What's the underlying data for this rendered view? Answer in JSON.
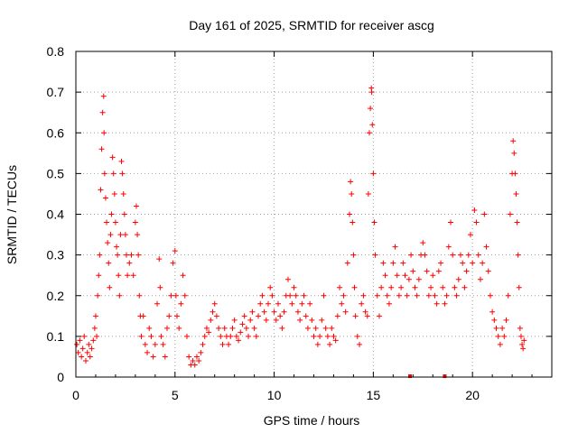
{
  "chart_data": {
    "type": "scatter",
    "title": "Day 161 of 2025, SRMTID for receiver ascg",
    "xlabel": "GPS time / hours",
    "ylabel": "SRMTID / TECUs",
    "xlim": [
      0,
      24
    ],
    "ylim": [
      0,
      0.8
    ],
    "grid": true,
    "marker": "+",
    "xticks": [
      {
        "value": 0,
        "label": "0"
      },
      {
        "value": 5,
        "label": "5"
      },
      {
        "value": 10,
        "label": "10"
      },
      {
        "value": 15,
        "label": "15"
      },
      {
        "value": 20,
        "label": "20"
      }
    ],
    "yticks": [
      {
        "value": 0,
        "label": "0"
      },
      {
        "value": 0.1,
        "label": "0.1"
      },
      {
        "value": 0.2,
        "label": "0.2"
      },
      {
        "value": 0.3,
        "label": "0.3"
      },
      {
        "value": 0.4,
        "label": "0.4"
      },
      {
        "value": 0.5,
        "label": "0.5"
      },
      {
        "value": 0.6,
        "label": "0.6"
      },
      {
        "value": 0.7,
        "label": "0.7"
      },
      {
        "value": 0.8,
        "label": "0.8"
      }
    ],
    "series": [
      {
        "name": "SRMTID",
        "color": "#ff0000",
        "points": [
          [
            0.05,
            0.08
          ],
          [
            0.12,
            0.06
          ],
          [
            0.2,
            0.09
          ],
          [
            0.28,
            0.05
          ],
          [
            0.35,
            0.07
          ],
          [
            0.42,
            0.1
          ],
          [
            0.5,
            0.04
          ],
          [
            0.58,
            0.06
          ],
          [
            0.65,
            0.08
          ],
          [
            0.72,
            0.05
          ],
          [
            0.8,
            0.07
          ],
          [
            0.88,
            0.09
          ],
          [
            0.95,
            0.12
          ],
          [
            1.0,
            0.15
          ],
          [
            1.05,
            0.1
          ],
          [
            1.1,
            0.2
          ],
          [
            1.15,
            0.25
          ],
          [
            1.2,
            0.3
          ],
          [
            1.25,
            0.46
          ],
          [
            1.3,
            0.56
          ],
          [
            1.35,
            0.65
          ],
          [
            1.4,
            0.69
          ],
          [
            1.42,
            0.6
          ],
          [
            1.45,
            0.5
          ],
          [
            1.5,
            0.44
          ],
          [
            1.55,
            0.38
          ],
          [
            1.6,
            0.33
          ],
          [
            1.65,
            0.28
          ],
          [
            1.7,
            0.22
          ],
          [
            1.75,
            0.35
          ],
          [
            1.8,
            0.4
          ],
          [
            1.85,
            0.54
          ],
          [
            1.9,
            0.5
          ],
          [
            1.95,
            0.45
          ],
          [
            2.0,
            0.38
          ],
          [
            2.05,
            0.32
          ],
          [
            2.1,
            0.3
          ],
          [
            2.15,
            0.25
          ],
          [
            2.2,
            0.2
          ],
          [
            2.25,
            0.35
          ],
          [
            2.3,
            0.53
          ],
          [
            2.35,
            0.5
          ],
          [
            2.4,
            0.45
          ],
          [
            2.45,
            0.4
          ],
          [
            2.5,
            0.35
          ],
          [
            2.55,
            0.3
          ],
          [
            2.6,
            0.25
          ],
          [
            2.7,
            0.28
          ],
          [
            2.8,
            0.3
          ],
          [
            2.9,
            0.25
          ],
          [
            3.0,
            0.38
          ],
          [
            3.05,
            0.42
          ],
          [
            3.1,
            0.35
          ],
          [
            3.15,
            0.3
          ],
          [
            3.2,
            0.2
          ],
          [
            3.25,
            0.15
          ],
          [
            3.3,
            0.1
          ],
          [
            3.4,
            0.15
          ],
          [
            3.5,
            0.08
          ],
          [
            3.6,
            0.06
          ],
          [
            3.7,
            0.12
          ],
          [
            3.8,
            0.1
          ],
          [
            3.9,
            0.05
          ],
          [
            4.0,
            0.08
          ],
          [
            4.1,
            0.18
          ],
          [
            4.2,
            0.29
          ],
          [
            4.25,
            0.22
          ],
          [
            4.3,
            0.1
          ],
          [
            4.4,
            0.08
          ],
          [
            4.5,
            0.05
          ],
          [
            4.6,
            0.12
          ],
          [
            4.7,
            0.15
          ],
          [
            4.8,
            0.2
          ],
          [
            4.9,
            0.28
          ],
          [
            5.0,
            0.31
          ],
          [
            5.05,
            0.2
          ],
          [
            5.1,
            0.15
          ],
          [
            5.2,
            0.12
          ],
          [
            5.3,
            0.18
          ],
          [
            5.4,
            0.25
          ],
          [
            5.5,
            0.2
          ],
          [
            5.6,
            0.1
          ],
          [
            5.7,
            0.05
          ],
          [
            5.8,
            0.03
          ],
          [
            5.9,
            0.04
          ],
          [
            6.0,
            0.03
          ],
          [
            6.1,
            0.05
          ],
          [
            6.2,
            0.04
          ],
          [
            6.3,
            0.06
          ],
          [
            6.4,
            0.08
          ],
          [
            6.5,
            0.1
          ],
          [
            6.6,
            0.12
          ],
          [
            6.7,
            0.11
          ],
          [
            6.8,
            0.14
          ],
          [
            6.9,
            0.16
          ],
          [
            7.0,
            0.18
          ],
          [
            7.1,
            0.15
          ],
          [
            7.2,
            0.12
          ],
          [
            7.3,
            0.1
          ],
          [
            7.4,
            0.08
          ],
          [
            7.5,
            0.12
          ],
          [
            7.6,
            0.1
          ],
          [
            7.7,
            0.08
          ],
          [
            7.8,
            0.1
          ],
          [
            7.9,
            0.12
          ],
          [
            8.0,
            0.14
          ],
          [
            8.1,
            0.1
          ],
          [
            8.2,
            0.09
          ],
          [
            8.3,
            0.11
          ],
          [
            8.4,
            0.13
          ],
          [
            8.5,
            0.15
          ],
          [
            8.6,
            0.12
          ],
          [
            8.7,
            0.1
          ],
          [
            8.8,
            0.14
          ],
          [
            8.9,
            0.16
          ],
          [
            9.0,
            0.12
          ],
          [
            9.1,
            0.1
          ],
          [
            9.2,
            0.15
          ],
          [
            9.3,
            0.18
          ],
          [
            9.4,
            0.2
          ],
          [
            9.5,
            0.16
          ],
          [
            9.6,
            0.14
          ],
          [
            9.7,
            0.18
          ],
          [
            9.8,
            0.22
          ],
          [
            9.9,
            0.2
          ],
          [
            10.0,
            0.16
          ],
          [
            10.1,
            0.14
          ],
          [
            10.2,
            0.18
          ],
          [
            10.3,
            0.15
          ],
          [
            10.4,
            0.12
          ],
          [
            10.5,
            0.16
          ],
          [
            10.6,
            0.2
          ],
          [
            10.7,
            0.24
          ],
          [
            10.8,
            0.2
          ],
          [
            10.9,
            0.18
          ],
          [
            11.0,
            0.22
          ],
          [
            11.1,
            0.2
          ],
          [
            11.2,
            0.16
          ],
          [
            11.3,
            0.14
          ],
          [
            11.4,
            0.18
          ],
          [
            11.5,
            0.2
          ],
          [
            11.6,
            0.15
          ],
          [
            11.7,
            0.12
          ],
          [
            11.8,
            0.18
          ],
          [
            11.9,
            0.14
          ],
          [
            12.0,
            0.1
          ],
          [
            12.1,
            0.12
          ],
          [
            12.2,
            0.08
          ],
          [
            12.3,
            0.1
          ],
          [
            12.4,
            0.14
          ],
          [
            12.5,
            0.2
          ],
          [
            12.6,
            0.12
          ],
          [
            12.7,
            0.1
          ],
          [
            12.8,
            0.08
          ],
          [
            12.9,
            0.12
          ],
          [
            13.0,
            0.1
          ],
          [
            13.1,
            0.09
          ],
          [
            13.2,
            0.15
          ],
          [
            13.3,
            0.22
          ],
          [
            13.4,
            0.18
          ],
          [
            13.5,
            0.2
          ],
          [
            13.6,
            0.16
          ],
          [
            13.7,
            0.28
          ],
          [
            13.8,
            0.4
          ],
          [
            13.85,
            0.48
          ],
          [
            13.9,
            0.45
          ],
          [
            13.95,
            0.38
          ],
          [
            14.0,
            0.3
          ],
          [
            14.05,
            0.22
          ],
          [
            14.1,
            0.15
          ],
          [
            14.2,
            0.1
          ],
          [
            14.3,
            0.08
          ],
          [
            14.4,
            0.18
          ],
          [
            14.5,
            0.2
          ],
          [
            14.6,
            0.16
          ],
          [
            14.7,
            0.15
          ],
          [
            14.75,
            0.45
          ],
          [
            14.8,
            0.6
          ],
          [
            14.85,
            0.66
          ],
          [
            14.9,
            0.71
          ],
          [
            14.92,
            0.7
          ],
          [
            14.95,
            0.62
          ],
          [
            15.0,
            0.5
          ],
          [
            15.05,
            0.38
          ],
          [
            15.1,
            0.3
          ],
          [
            15.2,
            0.2
          ],
          [
            15.3,
            0.15
          ],
          [
            15.4,
            0.22
          ],
          [
            15.5,
            0.28
          ],
          [
            15.6,
            0.25
          ],
          [
            15.7,
            0.2
          ],
          [
            15.8,
            0.18
          ],
          [
            15.9,
            0.22
          ],
          [
            16.0,
            0.28
          ],
          [
            16.1,
            0.32
          ],
          [
            16.2,
            0.25
          ],
          [
            16.3,
            0.2
          ],
          [
            16.4,
            0.22
          ],
          [
            16.5,
            0.28
          ],
          [
            16.6,
            0.25
          ],
          [
            16.7,
            0.2
          ],
          [
            16.8,
            0.24
          ],
          [
            16.9,
            0.3
          ],
          [
            17.0,
            0.26
          ],
          [
            17.1,
            0.22
          ],
          [
            17.2,
            0.2
          ],
          [
            17.3,
            0.24
          ],
          [
            17.4,
            0.3
          ],
          [
            17.5,
            0.33
          ],
          [
            17.6,
            0.3
          ],
          [
            17.7,
            0.26
          ],
          [
            17.8,
            0.2
          ],
          [
            17.9,
            0.22
          ],
          [
            18.0,
            0.25
          ],
          [
            18.1,
            0.2
          ],
          [
            18.2,
            0.18
          ],
          [
            18.3,
            0.26
          ],
          [
            18.4,
            0.28
          ],
          [
            18.5,
            0.22
          ],
          [
            18.6,
            0.18
          ],
          [
            18.7,
            0.2
          ],
          [
            18.8,
            0.32
          ],
          [
            18.9,
            0.38
          ],
          [
            19.0,
            0.3
          ],
          [
            19.1,
            0.22
          ],
          [
            19.2,
            0.2
          ],
          [
            19.3,
            0.24
          ],
          [
            19.4,
            0.3
          ],
          [
            19.5,
            0.28
          ],
          [
            19.6,
            0.22
          ],
          [
            19.7,
            0.26
          ],
          [
            19.8,
            0.3
          ],
          [
            19.9,
            0.35
          ],
          [
            20.0,
            0.28
          ],
          [
            20.1,
            0.41
          ],
          [
            20.2,
            0.38
          ],
          [
            20.3,
            0.3
          ],
          [
            20.4,
            0.24
          ],
          [
            20.5,
            0.28
          ],
          [
            20.6,
            0.4
          ],
          [
            20.7,
            0.32
          ],
          [
            20.8,
            0.26
          ],
          [
            20.9,
            0.2
          ],
          [
            21.0,
            0.16
          ],
          [
            21.1,
            0.14
          ],
          [
            21.2,
            0.12
          ],
          [
            21.3,
            0.1
          ],
          [
            21.4,
            0.08
          ],
          [
            21.5,
            0.12
          ],
          [
            21.6,
            0.1
          ],
          [
            21.7,
            0.14
          ],
          [
            21.8,
            0.2
          ],
          [
            21.9,
            0.4
          ],
          [
            22.0,
            0.5
          ],
          [
            22.05,
            0.58
          ],
          [
            22.1,
            0.55
          ],
          [
            22.15,
            0.5
          ],
          [
            22.2,
            0.45
          ],
          [
            22.25,
            0.38
          ],
          [
            22.3,
            0.3
          ],
          [
            22.35,
            0.22
          ],
          [
            22.4,
            0.12
          ],
          [
            22.45,
            0.1
          ],
          [
            22.5,
            0.08
          ],
          [
            22.55,
            0.07
          ],
          [
            22.6,
            0.09
          ]
        ]
      }
    ],
    "markers_on_axis": [
      {
        "x": 16.85,
        "y": 0
      },
      {
        "x": 18.6,
        "y": 0
      }
    ]
  }
}
